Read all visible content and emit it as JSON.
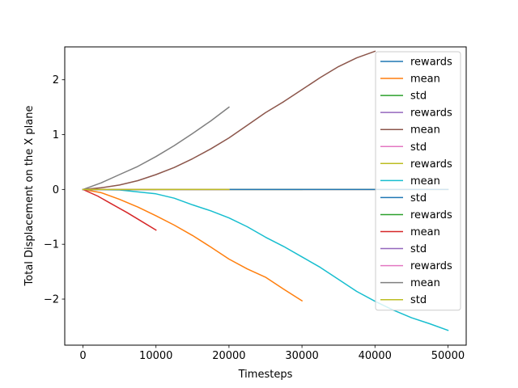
{
  "chart_data": {
    "type": "line",
    "title": "",
    "xlabel": "Timesteps",
    "ylabel": "Total Displacement on the X plane",
    "xlim": [
      -2500,
      52500
    ],
    "ylim": [
      -2.84,
      2.6
    ],
    "x_ticks": [
      0,
      10000,
      20000,
      30000,
      40000,
      50000
    ],
    "x_tick_labels": [
      "0",
      "10000",
      "20000",
      "30000",
      "40000",
      "50000"
    ],
    "y_ticks": [
      -2,
      -1,
      0,
      1,
      2
    ],
    "y_tick_labels": [
      "−2",
      "−1",
      "0",
      "1",
      "2"
    ],
    "grid": false,
    "legend_position": "top-right",
    "series": [
      {
        "name": "rewards",
        "color": "#1f77b4",
        "x": [
          0,
          10000
        ],
        "y": [
          0,
          0
        ]
      },
      {
        "name": "mean",
        "color": "#ff7f0e",
        "x": [
          0,
          2500,
          5000,
          7500,
          10000,
          12500,
          15000,
          17500,
          20000,
          22500,
          25000,
          27500,
          30000
        ],
        "y": [
          0,
          -0.06,
          -0.18,
          -0.32,
          -0.48,
          -0.65,
          -0.84,
          -1.05,
          -1.27,
          -1.45,
          -1.6,
          -1.82,
          -2.03
        ]
      },
      {
        "name": "std",
        "color": "#2ca02c",
        "x": [
          0,
          30000
        ],
        "y": [
          0,
          0
        ]
      },
      {
        "name": "rewards",
        "color": "#9467bd",
        "x": [
          0,
          40000
        ],
        "y": [
          0,
          0
        ]
      },
      {
        "name": "mean",
        "color": "#8c564b",
        "x": [
          0,
          2500,
          5000,
          7500,
          10000,
          12500,
          15000,
          17500,
          20000,
          22500,
          25000,
          27500,
          30000,
          32500,
          35000,
          37500,
          40000
        ],
        "y": [
          0,
          0.03,
          0.08,
          0.16,
          0.27,
          0.4,
          0.56,
          0.74,
          0.94,
          1.17,
          1.4,
          1.6,
          1.82,
          2.04,
          2.24,
          2.4,
          2.52
        ]
      },
      {
        "name": "std",
        "color": "#e377c2",
        "x": [
          0,
          40000
        ],
        "y": [
          0,
          0
        ]
      },
      {
        "name": "rewards",
        "color": "#bcbd22",
        "x": [
          0,
          50000
        ],
        "y": [
          0,
          0
        ]
      },
      {
        "name": "mean",
        "color": "#17becf",
        "x": [
          0,
          5000,
          10000,
          12500,
          15000,
          17500,
          20000,
          22500,
          25000,
          27500,
          30000,
          32500,
          35000,
          37500,
          40000,
          42500,
          45000,
          47500,
          50000
        ],
        "y": [
          0,
          -0.01,
          -0.08,
          -0.16,
          -0.28,
          -0.39,
          -0.52,
          -0.68,
          -0.87,
          -1.04,
          -1.23,
          -1.42,
          -1.64,
          -1.86,
          -2.04,
          -2.2,
          -2.34,
          -2.45,
          -2.57
        ]
      },
      {
        "name": "std",
        "color": "#1f77b4",
        "x": [
          0,
          50000
        ],
        "y": [
          0,
          0
        ]
      },
      {
        "name": "rewards",
        "color": "#2ca02c",
        "x": [
          0,
          10000
        ],
        "y": [
          0,
          0
        ]
      },
      {
        "name": "mean",
        "color": "#d62728",
        "x": [
          0,
          2000,
          4000,
          6000,
          8000,
          10000
        ],
        "y": [
          0,
          -0.12,
          -0.27,
          -0.42,
          -0.58,
          -0.74
        ]
      },
      {
        "name": "std",
        "color": "#9467bd",
        "x": [
          0,
          10000
        ],
        "y": [
          0,
          0
        ]
      },
      {
        "name": "rewards",
        "color": "#e377c2",
        "x": [
          0,
          20000
        ],
        "y": [
          0,
          0
        ]
      },
      {
        "name": "mean",
        "color": "#7f7f7f",
        "x": [
          0,
          2500,
          5000,
          7500,
          10000,
          12500,
          15000,
          17500,
          20000
        ],
        "y": [
          0,
          0.12,
          0.27,
          0.42,
          0.6,
          0.8,
          1.02,
          1.25,
          1.5
        ]
      },
      {
        "name": "std",
        "color": "#bcbd22",
        "x": [
          0,
          20000
        ],
        "y": [
          0,
          0
        ]
      }
    ]
  }
}
